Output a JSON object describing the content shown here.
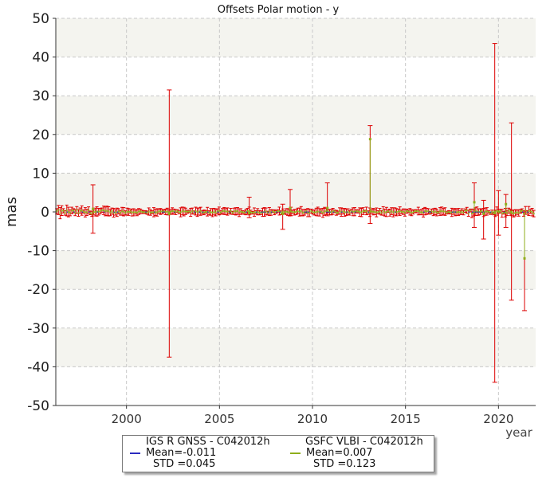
{
  "chart_data": {
    "type": "scatter",
    "title": "Offsets Polar motion - y",
    "xlabel": "year",
    "ylabel": "mas",
    "xlim": [
      1996.2,
      2022.0
    ],
    "ylim": [
      -50,
      50
    ],
    "xticks": [
      "2000",
      "2005",
      "2010",
      "2015",
      "2020"
    ],
    "yticks": [
      "-50",
      "-40",
      "-30",
      "-20",
      "-10",
      "0",
      "10",
      "20",
      "30",
      "40",
      "50"
    ],
    "grid": true,
    "series": [
      {
        "name": "IGS R GNSS - C042012h",
        "color": "#2b2bbf",
        "mean_label": "Mean=-0.011",
        "std_label": "STD =0.045",
        "note": "points near 0 with very small errors"
      },
      {
        "name": "GSFC VLBI - C042012h",
        "color": "#8fae1b",
        "errorbar_color": "#dd0000",
        "mean_label": "Mean=0.007",
        "std_label": "STD =0.123",
        "outliers": [
          {
            "x": 1998.2,
            "y": 0.8,
            "err_low": -5.5,
            "err_high": 7.0
          },
          {
            "x": 2002.3,
            "y": -0.5,
            "err_low": -37.5,
            "err_high": 31.5
          },
          {
            "x": 2006.6,
            "y": -0.3,
            "err_low": -1.5,
            "err_high": 3.8
          },
          {
            "x": 2008.4,
            "y": -0.5,
            "err_low": -4.5,
            "err_high": 2.0
          },
          {
            "x": 2008.8,
            "y": 1.0,
            "err_low": -1.0,
            "err_high": 5.8
          },
          {
            "x": 2010.8,
            "y": 1.0,
            "err_low": -1.0,
            "err_high": 7.5
          },
          {
            "x": 2013.1,
            "y": 18.8,
            "err_low": -3.0,
            "err_high": 22.3
          },
          {
            "x": 2018.7,
            "y": 2.5,
            "err_low": -4.0,
            "err_high": 7.5
          },
          {
            "x": 2019.2,
            "y": -0.5,
            "err_low": -7.0,
            "err_high": 3.0
          },
          {
            "x": 2019.8,
            "y": 0.0,
            "err_low": -44.0,
            "err_high": 43.5
          },
          {
            "x": 2020.0,
            "y": 0.0,
            "err_low": -6.0,
            "err_high": 5.5
          },
          {
            "x": 2020.4,
            "y": 2.0,
            "err_low": -4.0,
            "err_high": 4.5
          },
          {
            "x": 2020.7,
            "y": 0.0,
            "err_low": -22.8,
            "err_high": 23.0
          },
          {
            "x": 2021.4,
            "y": -12.0,
            "err_low": -25.5,
            "err_high": 0.0
          }
        ]
      }
    ],
    "legend_position": "bottom-center",
    "background_bands": [
      "#f4f4ef",
      "#ffffff"
    ]
  }
}
